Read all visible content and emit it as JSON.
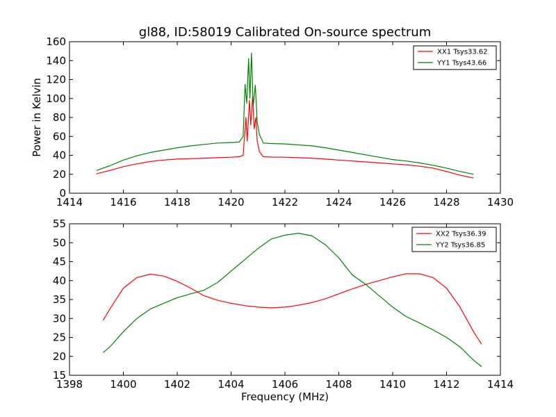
{
  "chart_data": [
    {
      "type": "line",
      "title": "gl88, ID:58019 Calibrated On-source spectrum",
      "xlabel": "",
      "ylabel": "Power in Kelvin",
      "xlim": [
        1414,
        1430
      ],
      "ylim": [
        0,
        160
      ],
      "xticks": [
        1414,
        1416,
        1418,
        1420,
        1422,
        1424,
        1426,
        1428,
        1430
      ],
      "yticks": [
        0,
        20,
        40,
        60,
        80,
        100,
        120,
        140,
        160
      ],
      "grid": false,
      "legend_position": "top-right",
      "series": [
        {
          "name": "XX1 Tsys33.62",
          "color": "#ff0000",
          "points": [
            [
              1415.0,
              20.5
            ],
            [
              1415.5,
              24
            ],
            [
              1416.0,
              28
            ],
            [
              1416.5,
              31
            ],
            [
              1417.0,
              33.5
            ],
            [
              1417.5,
              35
            ],
            [
              1418.0,
              36
            ],
            [
              1418.5,
              36.5
            ],
            [
              1419.0,
              37
            ],
            [
              1419.5,
              37.5
            ],
            [
              1420.0,
              38
            ],
            [
              1420.3,
              38.5
            ],
            [
              1420.45,
              40
            ],
            [
              1420.55,
              80
            ],
            [
              1420.6,
              55
            ],
            [
              1420.68,
              98
            ],
            [
              1420.73,
              72
            ],
            [
              1420.8,
              103
            ],
            [
              1420.86,
              68
            ],
            [
              1420.92,
              80
            ],
            [
              1420.97,
              55
            ],
            [
              1421.05,
              44
            ],
            [
              1421.2,
              38.5
            ],
            [
              1421.5,
              38.2
            ],
            [
              1422.0,
              38
            ],
            [
              1422.5,
              37.5
            ],
            [
              1423.0,
              37
            ],
            [
              1423.5,
              36
            ],
            [
              1424.0,
              35
            ],
            [
              1424.5,
              34
            ],
            [
              1425.0,
              33
            ],
            [
              1425.5,
              32
            ],
            [
              1426.0,
              31
            ],
            [
              1426.5,
              30
            ],
            [
              1427.0,
              28.5
            ],
            [
              1427.5,
              26.5
            ],
            [
              1428.0,
              23
            ],
            [
              1428.5,
              19
            ],
            [
              1429.0,
              16
            ]
          ]
        },
        {
          "name": "YY1 Tsys43.66",
          "color": "#008000",
          "points": [
            [
              1415.0,
              24
            ],
            [
              1415.5,
              29
            ],
            [
              1416.0,
              35
            ],
            [
              1416.5,
              39.5
            ],
            [
              1417.0,
              43
            ],
            [
              1417.5,
              45.5
            ],
            [
              1418.0,
              48
            ],
            [
              1418.5,
              50
            ],
            [
              1419.0,
              51.5
            ],
            [
              1419.5,
              53
            ],
            [
              1420.0,
              53.5
            ],
            [
              1420.3,
              54
            ],
            [
              1420.45,
              60
            ],
            [
              1420.52,
              115
            ],
            [
              1420.58,
              95
            ],
            [
              1420.65,
              142
            ],
            [
              1420.7,
              100
            ],
            [
              1420.76,
              148
            ],
            [
              1420.82,
              92
            ],
            [
              1420.9,
              114
            ],
            [
              1420.97,
              75
            ],
            [
              1421.05,
              62
            ],
            [
              1421.2,
              53
            ],
            [
              1421.5,
              52.5
            ],
            [
              1422.0,
              52
            ],
            [
              1422.5,
              51
            ],
            [
              1423.0,
              50
            ],
            [
              1423.5,
              48
            ],
            [
              1424.0,
              45.5
            ],
            [
              1424.5,
              43
            ],
            [
              1425.0,
              40.5
            ],
            [
              1425.5,
              38
            ],
            [
              1426.0,
              35.5
            ],
            [
              1426.5,
              34
            ],
            [
              1427.0,
              32
            ],
            [
              1427.5,
              29.5
            ],
            [
              1428.0,
              26.5
            ],
            [
              1428.5,
              23
            ],
            [
              1429.0,
              20
            ]
          ]
        }
      ]
    },
    {
      "type": "line",
      "title": "",
      "xlabel": "Frequency (MHz)",
      "ylabel": "",
      "xlim": [
        1398,
        1414
      ],
      "ylim": [
        15,
        55
      ],
      "xticks": [
        1398,
        1400,
        1402,
        1404,
        1406,
        1408,
        1410,
        1412,
        1414
      ],
      "yticks": [
        15,
        20,
        25,
        30,
        35,
        40,
        45,
        50,
        55
      ],
      "grid": false,
      "legend_position": "top-right",
      "series": [
        {
          "name": "XX2 Tsys36.39",
          "color": "#ff0000",
          "points": [
            [
              1399.25,
              29.5
            ],
            [
              1399.5,
              32.5
            ],
            [
              1400.0,
              38
            ],
            [
              1400.5,
              40.8
            ],
            [
              1401.0,
              41.7
            ],
            [
              1401.5,
              41.2
            ],
            [
              1402.0,
              39.8
            ],
            [
              1402.5,
              38
            ],
            [
              1403.0,
              36
            ],
            [
              1403.5,
              34.8
            ],
            [
              1404.0,
              34
            ],
            [
              1404.5,
              33.4
            ],
            [
              1405.0,
              33
            ],
            [
              1405.5,
              32.8
            ],
            [
              1406.0,
              33
            ],
            [
              1406.5,
              33.5
            ],
            [
              1407.0,
              34.2
            ],
            [
              1407.5,
              35.2
            ],
            [
              1408.0,
              36.5
            ],
            [
              1408.5,
              37.8
            ],
            [
              1409.0,
              39
            ],
            [
              1409.5,
              40
            ],
            [
              1410.0,
              41
            ],
            [
              1410.5,
              41.8
            ],
            [
              1411.0,
              41.8
            ],
            [
              1411.5,
              40.8
            ],
            [
              1412.0,
              38
            ],
            [
              1412.5,
              33
            ],
            [
              1413.0,
              26.5
            ],
            [
              1413.3,
              23.2
            ]
          ]
        },
        {
          "name": "YY2 Tsys36.85",
          "color": "#008000",
          "points": [
            [
              1399.25,
              21
            ],
            [
              1399.5,
              22.5
            ],
            [
              1400.0,
              26.5
            ],
            [
              1400.5,
              30
            ],
            [
              1401.0,
              32.5
            ],
            [
              1401.5,
              34
            ],
            [
              1402.0,
              35.5
            ],
            [
              1402.5,
              36.5
            ],
            [
              1403.0,
              37.5
            ],
            [
              1403.5,
              39.5
            ],
            [
              1404.0,
              42.5
            ],
            [
              1404.5,
              45.5
            ],
            [
              1405.0,
              48.5
            ],
            [
              1405.5,
              51
            ],
            [
              1406.0,
              52
            ],
            [
              1406.5,
              52.5
            ],
            [
              1407.0,
              51.8
            ],
            [
              1407.5,
              49.5
            ],
            [
              1408.0,
              46
            ],
            [
              1408.5,
              41.5
            ],
            [
              1409.0,
              39
            ],
            [
              1409.5,
              36
            ],
            [
              1410.0,
              33
            ],
            [
              1410.5,
              30.5
            ],
            [
              1411.0,
              28.8
            ],
            [
              1411.5,
              27
            ],
            [
              1412.0,
              25
            ],
            [
              1412.5,
              22.5
            ],
            [
              1413.0,
              19
            ],
            [
              1413.3,
              17.3
            ]
          ]
        }
      ]
    }
  ]
}
